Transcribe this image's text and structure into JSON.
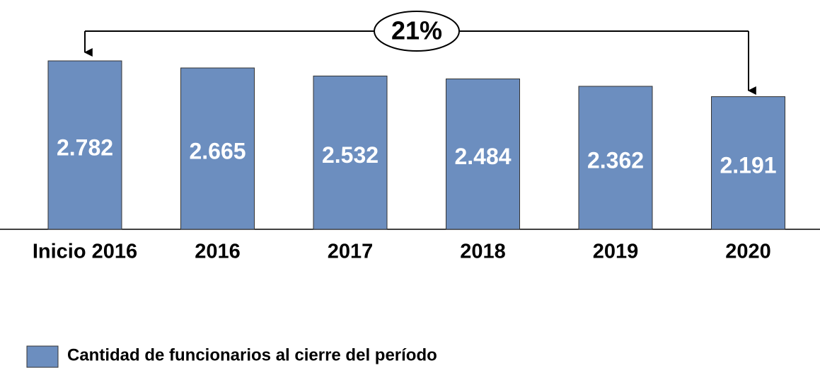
{
  "chart_data": {
    "type": "bar",
    "categories": [
      "Inicio 2016",
      "2016",
      "2017",
      "2018",
      "2019",
      "2020"
    ],
    "series": [
      {
        "name": "Cantidad de funcionarios al cierre del período",
        "color": "#6c8ebf",
        "values": [
          2782,
          2665,
          2532,
          2484,
          2362,
          2191
        ],
        "value_labels": [
          "2.782",
          "2.665",
          "2.532",
          "2.484",
          "2.362",
          "2.191"
        ]
      }
    ],
    "annotations": [
      "21%"
    ],
    "legend": "bottom-left"
  }
}
